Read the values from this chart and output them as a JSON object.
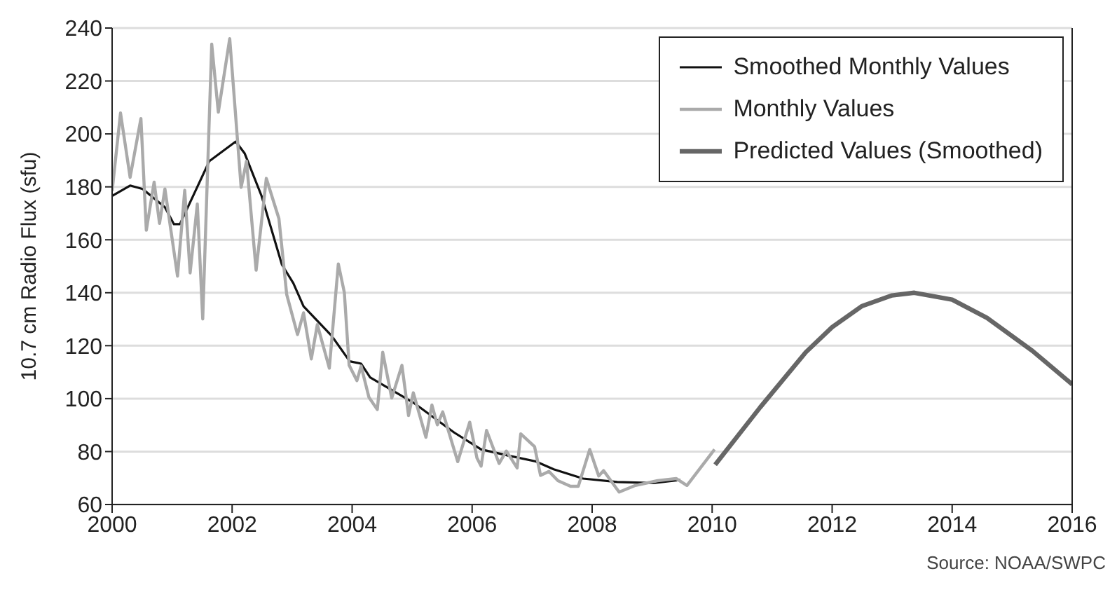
{
  "chart_data": {
    "type": "line",
    "ylabel": "10.7 cm Radio Flux (sfu)",
    "xlim": [
      2000,
      2016
    ],
    "xticks": [
      2000,
      2002,
      2004,
      2006,
      2008,
      2010,
      2012,
      2014,
      2016
    ],
    "ylim": [
      60,
      240
    ],
    "yticks": [
      60,
      80,
      100,
      120,
      140,
      160,
      180,
      200,
      220,
      240
    ],
    "grid": "y",
    "legend": "top right",
    "marker": "none",
    "line_style": "solid",
    "annotations": [
      "Source: NOAA/SWPC"
    ],
    "series": [
      {
        "name": "Smoothed Monthly Values",
        "color": "#111111",
        "x": [
          2000,
          2000.3,
          2000.51,
          2000.88,
          2001.03,
          2001.13,
          2001.62,
          2002.06,
          2002.21,
          2002.49,
          2002.83,
          2003.02,
          2003.19,
          2003.66,
          2003.96,
          2004.15,
          2004.3,
          2005.02,
          2005.7,
          2006.15,
          2006.6,
          2007.06,
          2007.36,
          2007.85,
          2008.42,
          2009.02,
          2009.47
        ],
        "values": [
          176.6,
          180.5,
          179.2,
          172.3,
          165.9,
          165.9,
          189.7,
          197.1,
          192.6,
          176.6,
          150.6,
          143.6,
          134.9,
          123.7,
          114.1,
          113.2,
          108,
          98.5,
          87.2,
          80.8,
          78.5,
          76.3,
          73.3,
          69.8,
          68.5,
          68.1,
          69.3
        ]
      },
      {
        "name": "Monthly Values",
        "color": "#aaaaaa",
        "x": [
          2000,
          2000.14,
          2000.3,
          2000.48,
          2000.57,
          2000.7,
          2000.79,
          2000.88,
          2001.09,
          2001.21,
          2001.3,
          2001.42,
          2001.51,
          2001.66,
          2001.77,
          2001.96,
          2002.15,
          2002.24,
          2002.4,
          2002.57,
          2002.78,
          2002.91,
          2003.09,
          2003.19,
          2003.32,
          2003.42,
          2003.62,
          2003.77,
          2003.87,
          2003.95,
          2004.08,
          2004.15,
          2004.28,
          2004.42,
          2004.51,
          2004.66,
          2004.83,
          2004.94,
          2005.02,
          2005.23,
          2005.33,
          2005.42,
          2005.51,
          2005.76,
          2005.96,
          2006.08,
          2006.15,
          2006.24,
          2006.45,
          2006.57,
          2006.75,
          2006.81,
          2007.04,
          2007.14,
          2007.28,
          2007.43,
          2007.64,
          2007.77,
          2007.96,
          2008.11,
          2008.19,
          2008.45,
          2008.72,
          2009.09,
          2009.4,
          2009.58,
          2010.04
        ],
        "values": [
          178.4,
          207.9,
          183.6,
          205.8,
          163.6,
          181.8,
          166.2,
          179.2,
          146.3,
          178.7,
          147.5,
          173.5,
          130.1,
          233.9,
          208.2,
          236,
          179.8,
          189.7,
          148.5,
          183.2,
          168,
          139.3,
          124.2,
          132.4,
          115,
          128,
          111.5,
          150.9,
          140.1,
          112.6,
          106.8,
          112.3,
          100.5,
          95.9,
          117.5,
          100.2,
          112.6,
          93.6,
          102.2,
          85.4,
          97.6,
          90.1,
          95,
          76.2,
          91.1,
          77.6,
          74.5,
          88,
          75.5,
          80.2,
          73.8,
          86.7,
          81.9,
          71,
          72.5,
          69,
          66.9,
          66.9,
          80.8,
          70.8,
          72.8,
          64.7,
          67.2,
          69,
          69.8,
          67.2,
          80.8
        ]
      },
      {
        "name": "Predicted Values (Smoothed)",
        "color": "#666666",
        "x": [
          2010.05,
          2010.8,
          2011.56,
          2012,
          2012.5,
          2013,
          2013.37,
          2014,
          2014.58,
          2015.34,
          2016
        ],
        "values": [
          75,
          96.7,
          117.5,
          127,
          135,
          139,
          140,
          137.4,
          130.5,
          118,
          105.4
        ]
      }
    ]
  }
}
